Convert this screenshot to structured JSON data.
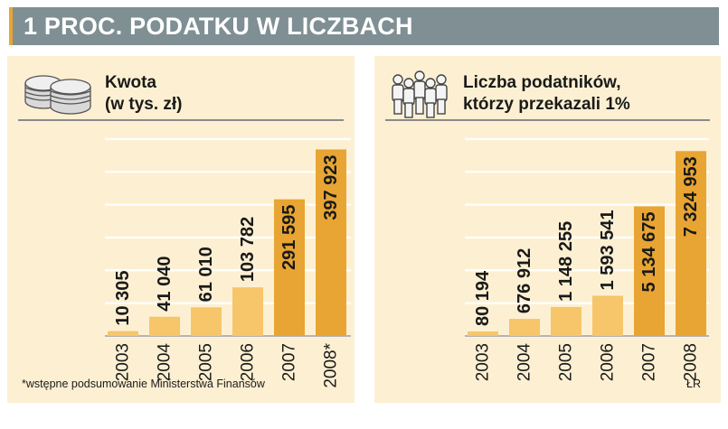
{
  "title": "1 PROC. PODATKU W LICZBACH",
  "colors": {
    "bar_dark": "#e8a533",
    "bar_light": "#f7c56a",
    "panel": "#fdf0d2",
    "titlebar": "#7f8f94"
  },
  "chart_data": [
    {
      "type": "bar",
      "title": "Kwota (w tys. zł)",
      "title_lines": [
        "Kwota",
        "(w tys. zł)"
      ],
      "icon": "coins-icon",
      "categories": [
        "2003",
        "2004",
        "2005",
        "2006",
        "2007",
        "2008*"
      ],
      "values": [
        10305,
        41040,
        61010,
        103782,
        291595,
        397923
      ],
      "value_labels": [
        "10 305",
        "41 040",
        "61 010",
        "103 782",
        "291 595",
        "397 923"
      ],
      "ylim": [
        0,
        420000
      ],
      "grid": true
    },
    {
      "type": "bar",
      "title": "Liczba podatników, którzy przekazali 1%",
      "title_lines": [
        "Liczba podatników,",
        "którzy przekazali 1%"
      ],
      "icon": "people-icon",
      "categories": [
        "2003",
        "2004",
        "2005",
        "2006",
        "2007",
        "2008"
      ],
      "values": [
        80194,
        676912,
        1148255,
        1593541,
        5134675,
        7324953
      ],
      "value_labels": [
        "80 194",
        "676 912",
        "1 148 255",
        "1 593 541",
        "5 134 675",
        "7 324 953"
      ],
      "ylim": [
        0,
        7800000
      ],
      "grid": true
    }
  ],
  "footnote": "*wstępne podsumowanie Ministerstwa Finansów",
  "credit": "ŁR"
}
